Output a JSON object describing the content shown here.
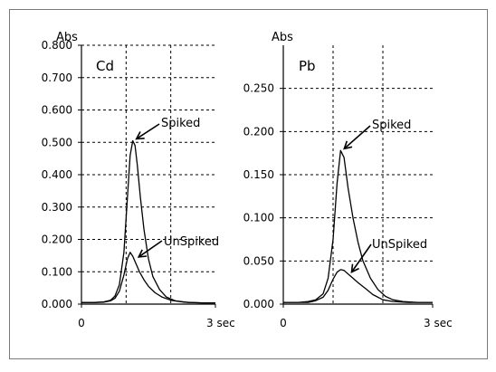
{
  "colors": {
    "background": "#ffffff",
    "plot_area": "#ffffff",
    "border": "#7a7a7a",
    "line": "#000000"
  },
  "chart_data": [
    {
      "type": "line",
      "panel_label": "Cd",
      "ylabel": "Abs",
      "ylim": [
        0,
        0.8
      ],
      "xlim": [
        0,
        3
      ],
      "y_ticks": [
        "0.000",
        "0.100",
        "0.200",
        "0.300",
        "0.400",
        "0.500",
        "0.600",
        "0.700",
        "0.800"
      ],
      "y_tick_values": [
        0,
        0.1,
        0.2,
        0.3,
        0.4,
        0.5,
        0.6,
        0.7,
        0.8
      ],
      "x_tick_labels": [
        "0",
        "3 sec"
      ],
      "x_tick_values": [
        0,
        3
      ],
      "grid": true,
      "series": [
        {
          "name": "Spiked",
          "x": [
            0,
            0.3,
            0.5,
            0.65,
            0.75,
            0.85,
            0.95,
            1.03,
            1.09,
            1.15,
            1.2,
            1.25,
            1.32,
            1.4,
            1.5,
            1.6,
            1.75,
            1.9,
            2.1,
            2.4,
            2.7,
            3.0
          ],
          "y": [
            0.005,
            0.005,
            0.007,
            0.012,
            0.025,
            0.06,
            0.16,
            0.33,
            0.46,
            0.505,
            0.49,
            0.43,
            0.33,
            0.23,
            0.14,
            0.085,
            0.045,
            0.022,
            0.01,
            0.005,
            0.004,
            0.004
          ]
        },
        {
          "name": "UnSpiked",
          "x": [
            0,
            0.3,
            0.5,
            0.65,
            0.75,
            0.85,
            0.95,
            1.03,
            1.09,
            1.15,
            1.22,
            1.3,
            1.4,
            1.5,
            1.65,
            1.8,
            2.0,
            2.3,
            2.7,
            3.0
          ],
          "y": [
            0.005,
            0.005,
            0.006,
            0.01,
            0.018,
            0.04,
            0.09,
            0.14,
            0.16,
            0.148,
            0.125,
            0.1,
            0.075,
            0.055,
            0.035,
            0.022,
            0.012,
            0.006,
            0.004,
            0.004
          ]
        }
      ],
      "annotations": [
        {
          "text": "Spiked",
          "target_series": "Spiked",
          "x": 1.15,
          "y": 0.505
        },
        {
          "text": "UnSpiked",
          "target_series": "UnSpiked",
          "x": 1.2,
          "y": 0.14
        }
      ]
    },
    {
      "type": "line",
      "panel_label": "Pb",
      "ylabel": "Abs",
      "ylim": [
        0,
        0.3
      ],
      "xlim": [
        0,
        3
      ],
      "y_ticks": [
        "0.000",
        "0.050",
        "0.100",
        "0.150",
        "0.200",
        "0.250"
      ],
      "y_tick_values": [
        0,
        0.05,
        0.1,
        0.15,
        0.2,
        0.25
      ],
      "x_tick_labels": [
        "0",
        "3 sec"
      ],
      "x_tick_values": [
        0,
        3
      ],
      "grid": true,
      "series": [
        {
          "name": "Spiked",
          "x": [
            0,
            0.3,
            0.5,
            0.65,
            0.8,
            0.9,
            1.0,
            1.08,
            1.15,
            1.22,
            1.3,
            1.4,
            1.5,
            1.6,
            1.75,
            1.9,
            2.05,
            2.2,
            2.4,
            2.7,
            3.0
          ],
          "y": [
            0.002,
            0.002,
            0.003,
            0.005,
            0.012,
            0.03,
            0.075,
            0.14,
            0.178,
            0.17,
            0.135,
            0.1,
            0.072,
            0.05,
            0.03,
            0.017,
            0.009,
            0.005,
            0.003,
            0.002,
            0.002
          ]
        },
        {
          "name": "UnSpiked",
          "x": [
            0,
            0.3,
            0.5,
            0.65,
            0.8,
            0.9,
            1.0,
            1.08,
            1.15,
            1.22,
            1.3,
            1.4,
            1.5,
            1.65,
            1.8,
            2.0,
            2.2,
            2.5,
            3.0
          ],
          "y": [
            0.002,
            0.002,
            0.002,
            0.004,
            0.008,
            0.016,
            0.029,
            0.037,
            0.04,
            0.039,
            0.035,
            0.03,
            0.025,
            0.018,
            0.011,
            0.005,
            0.003,
            0.002,
            0.002
          ]
        }
      ],
      "annotations": [
        {
          "text": "Spiked",
          "target_series": "Spiked",
          "x": 1.15,
          "y": 0.178
        },
        {
          "text": "UnSpiked",
          "target_series": "UnSpiked",
          "x": 1.3,
          "y": 0.035
        }
      ]
    }
  ]
}
